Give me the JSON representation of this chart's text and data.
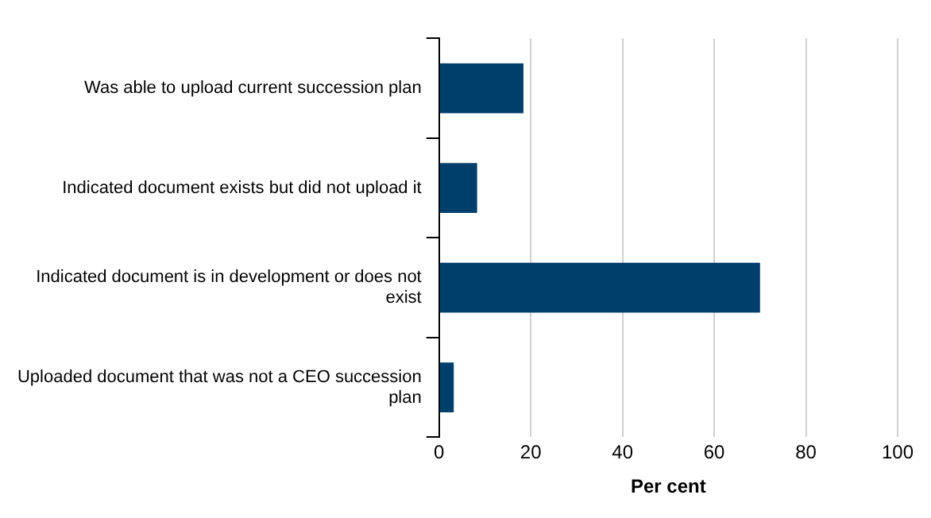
{
  "chart_data": {
    "type": "bar",
    "orientation": "horizontal",
    "categories": [
      "Was able to upload current succession plan",
      "Indicated document exists but did not upload it",
      "Indicated document is in development or does not exist",
      "Uploaded document that was not a CEO succession plan"
    ],
    "values": [
      18.4,
      8.3,
      70,
      3.2
    ],
    "color": "#003f6b",
    "xlabel": "Per cent",
    "xlim": [
      0,
      100
    ],
    "xticks": [
      0,
      20,
      40,
      60,
      80,
      100
    ],
    "grid": "x",
    "legend": false
  }
}
